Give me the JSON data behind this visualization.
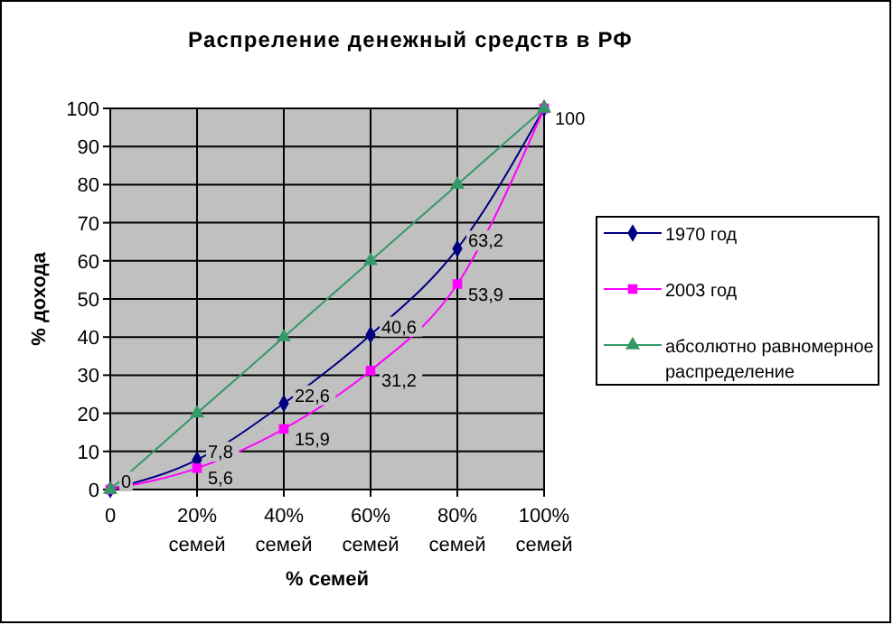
{
  "chart_data": {
    "type": "line",
    "title": "Распреление денежный средств в РФ",
    "xlabel": "% семей",
    "ylabel": "% дохода",
    "categories": [
      "0",
      "20%\nсемей",
      "40%\nсемей",
      "60%\nсемей",
      "80%\nсемей",
      "100%\nсемей"
    ],
    "series": [
      {
        "name": "1970 год",
        "color": "#000080",
        "marker": "diamond",
        "values": [
          0,
          7.8,
          22.6,
          40.6,
          63.2,
          100
        ],
        "value_labels": [
          "0",
          "7,8",
          "22,6",
          "40,6",
          "63,2",
          null
        ]
      },
      {
        "name": "2003 год",
        "color": "#ff00ff",
        "marker": "square",
        "values": [
          0,
          5.6,
          15.9,
          31.2,
          53.9,
          100
        ],
        "value_labels": [
          null,
          "5,6",
          "15,9",
          "31,2",
          "53,9",
          null
        ]
      },
      {
        "name": "абсолютно равномерное распределение",
        "color": "#339966",
        "marker": "triangle",
        "values": [
          0,
          20,
          40,
          60,
          80,
          100
        ],
        "value_labels": [
          null,
          null,
          null,
          null,
          null,
          "100"
        ]
      }
    ],
    "ylim": [
      0,
      100
    ],
    "yticks": [
      0,
      10,
      20,
      30,
      40,
      50,
      60,
      70,
      80,
      90,
      100
    ],
    "grid": true,
    "legend": "right"
  }
}
